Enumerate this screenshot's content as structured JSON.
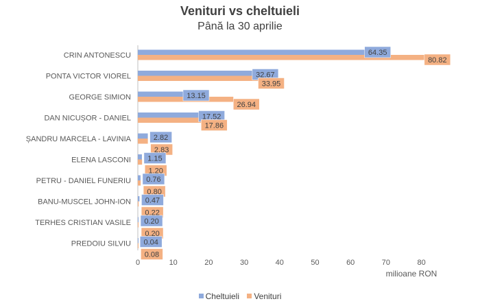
{
  "chart_data": {
    "type": "bar",
    "orientation": "horizontal",
    "title": "Venituri vs cheltuieli",
    "subtitle": "Până la 30 aprilie",
    "xlabel": "milioane RON",
    "ylabel": "",
    "xlim": [
      0,
      80
    ],
    "xticks": [
      0,
      10,
      20,
      30,
      40,
      50,
      60,
      70,
      80
    ],
    "grid": false,
    "legend_position": "bottom",
    "categories": [
      "CRIN ANTONESCU",
      "PONTA VICTOR VIOREL",
      "GEORGE SIMION",
      "DAN NICUȘOR - DANIEL",
      "ȘANDRU MARCELA - LAVINIA",
      "ELENA LASCONI",
      "PETRU - DANIEL FUNERIU",
      "BANU-MUSCEL JOHN-ION",
      "TERHES CRISTIAN VASILE",
      "PREDOIU SILVIU"
    ],
    "series": [
      {
        "name": "Cheltuieli",
        "color": "#8faadc",
        "values": [
          64.35,
          32.67,
          13.15,
          17.52,
          2.82,
          1.15,
          0.76,
          0.47,
          0.2,
          0.04
        ],
        "labels": [
          "64.35",
          "32.67",
          "13.15",
          "17.52",
          "2.82",
          "1.15",
          "0.76",
          "0.47",
          "0.20",
          "0.04"
        ]
      },
      {
        "name": "Venituri",
        "color": "#f4b183",
        "values": [
          80.82,
          33.95,
          26.94,
          17.86,
          2.83,
          1.2,
          0.8,
          0.22,
          0.2,
          0.08
        ],
        "labels": [
          "80.82",
          "33.95",
          "26.94",
          "17.86",
          "2.83",
          "1.20",
          "0.80",
          "0.22",
          "0.20",
          "0.08"
        ]
      }
    ]
  }
}
